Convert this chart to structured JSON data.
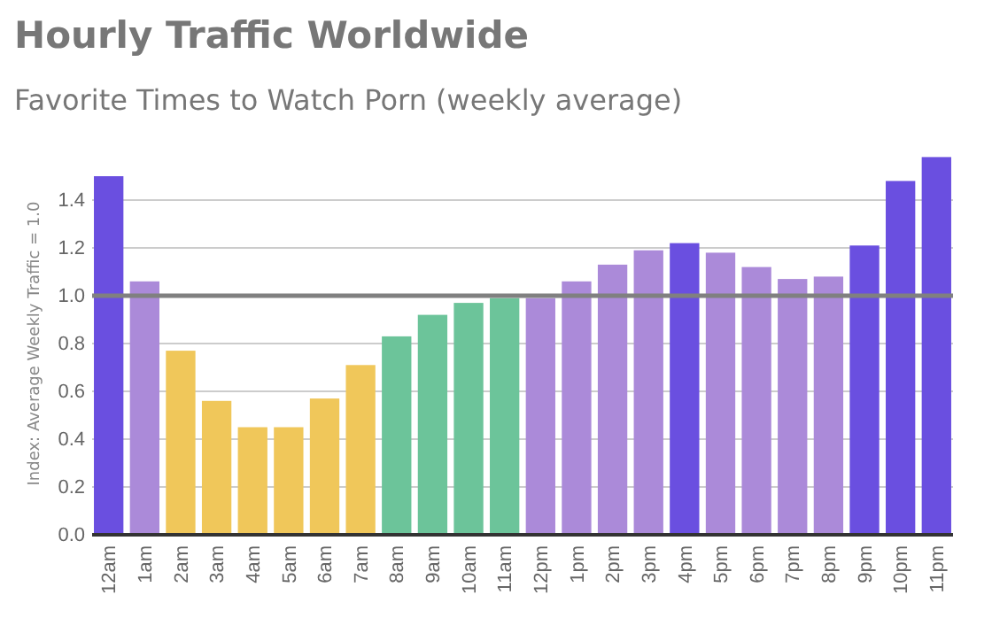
{
  "chart_data": {
    "type": "bar",
    "title": "Hourly Traffic Worldwide",
    "subtitle": "Favorite Times to Watch Porn  (weekly average)",
    "ylabel": "Index: Average Weekly Traffic = 1.0",
    "categories": [
      "12am",
      "1am",
      "2am",
      "3am",
      "4am",
      "5am",
      "6am",
      "7am",
      "8am",
      "9am",
      "10am",
      "11am",
      "12pm",
      "1pm",
      "2pm",
      "3pm",
      "4pm",
      "5pm",
      "6pm",
      "7pm",
      "8pm",
      "9pm",
      "10pm",
      "11pm"
    ],
    "values": [
      1.5,
      1.06,
      0.77,
      0.56,
      0.45,
      0.45,
      0.57,
      0.71,
      0.83,
      0.92,
      0.97,
      0.99,
      0.99,
      1.06,
      1.13,
      1.19,
      1.22,
      1.18,
      1.12,
      1.07,
      1.08,
      1.21,
      1.48,
      1.58
    ],
    "colors": [
      "#6a4fe0",
      "#ab8ad9",
      "#f0c75a",
      "#f0c75a",
      "#f0c75a",
      "#f0c75a",
      "#f0c75a",
      "#f0c75a",
      "#6cc49a",
      "#6cc49a",
      "#6cc49a",
      "#6cc49a",
      "#ab8ad9",
      "#ab8ad9",
      "#ab8ad9",
      "#ab8ad9",
      "#6a4fe0",
      "#ab8ad9",
      "#ab8ad9",
      "#ab8ad9",
      "#ab8ad9",
      "#6a4fe0",
      "#6a4fe0",
      "#6a4fe0"
    ],
    "ylim": [
      0,
      1.6
    ],
    "yticks": [
      {
        "value": 0,
        "label": "0.0"
      },
      {
        "value": 0.2,
        "label": "0.2"
      },
      {
        "value": 0.4,
        "label": "0.4"
      },
      {
        "value": 0.6,
        "label": "0.6"
      },
      {
        "value": 0.8,
        "label": "0.8"
      },
      {
        "value": 1,
        "label": "1.0"
      },
      {
        "value": 1.2,
        "label": "1.2"
      },
      {
        "value": 1.4,
        "label": "1.4"
      }
    ],
    "grid": "y",
    "ref_lines": [
      {
        "axis": "y",
        "value": 1,
        "color": "#808080"
      }
    ]
  }
}
